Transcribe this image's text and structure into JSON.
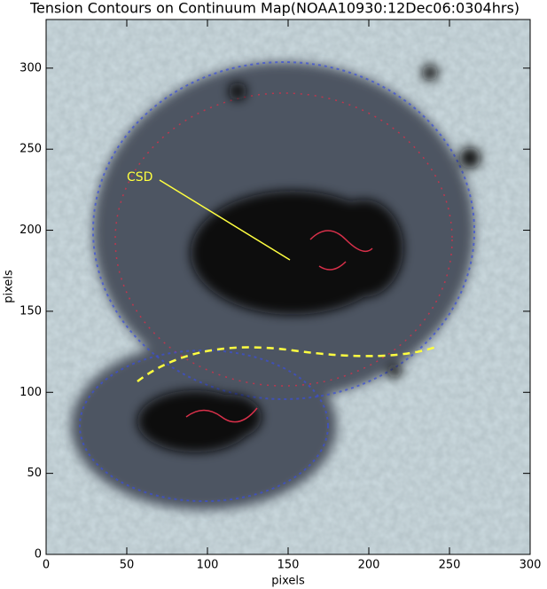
{
  "chart_data": {
    "type": "image",
    "title": "Tension Contours on Continuum Map(NOAA10930:12Dec06:0304hrs)",
    "xlabel": "pixels",
    "ylabel": "pixels",
    "annotation": "CSD",
    "xlim": [
      0,
      300
    ],
    "ylim": [
      0,
      330
    ],
    "xticks": [
      0,
      50,
      100,
      150,
      200,
      250,
      300
    ],
    "yticks": [
      0,
      50,
      100,
      150,
      200,
      250,
      300
    ]
  }
}
